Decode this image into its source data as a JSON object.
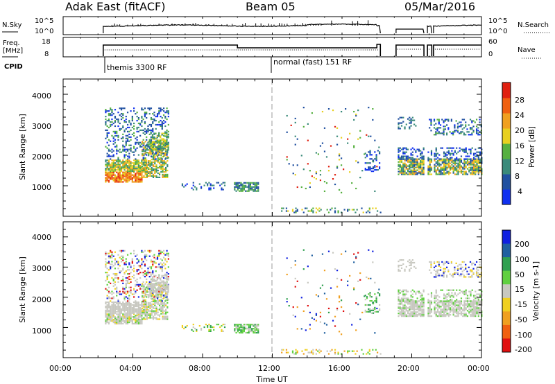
{
  "header": {
    "radar": "Adak East (fitACF)",
    "beam": "Beam 05",
    "date": "05/Mar/2016"
  },
  "status_panels": {
    "nsky_label": "N.Sky",
    "nsearch_label": "N.Search",
    "nsky_ticks": [
      "10^5",
      "10^0"
    ],
    "nsearch_ticks": [
      "10^5",
      "10^0"
    ],
    "freq_label_line1": "Freq.",
    "freq_label_line2": "[MHz]",
    "freq_ticks": [
      "18",
      "8"
    ],
    "nave_label": "Nave",
    "nave_ticks": [
      "60",
      "0"
    ],
    "cpid_label": "CPID",
    "cpid_segments": [
      {
        "start_hour": 2.3,
        "label": "themis 3300 RF"
      },
      {
        "start_hour": 12.0,
        "label": "normal (fast) 151 RF"
      }
    ],
    "data_gaps_hours": [
      [
        0,
        2.3
      ],
      [
        18.2,
        19.1
      ],
      [
        20.7,
        20.9
      ],
      [
        21.15,
        21.25
      ]
    ]
  },
  "chart_data": [
    {
      "type": "heatmap",
      "name": "power",
      "ylabel": "Slant Range [km]",
      "xlim_hours": [
        0,
        24
      ],
      "ylim_km": [
        0,
        4500
      ],
      "yticks": [
        "1000",
        "2000",
        "3000",
        "4000"
      ],
      "colorbar_label": "Power [dB]",
      "colorbar_ticks": [
        "4",
        "8",
        "12",
        "16",
        "20",
        "24",
        "28"
      ],
      "colorbar_range": [
        0,
        32
      ],
      "colors": [
        "#1030f0",
        "#2050a0",
        "#3a8a7a",
        "#56b040",
        "#e8d020",
        "#f0a020",
        "#f06010",
        "#e02010"
      ]
    },
    {
      "type": "heatmap",
      "name": "velocity",
      "ylabel": "Slant Range [km]",
      "xlabel": "Time UT",
      "xlim_hours": [
        0,
        24
      ],
      "ylim_km": [
        0,
        4500
      ],
      "yticks": [
        "1000",
        "2000",
        "3000",
        "4000"
      ],
      "xticks": [
        "00:00",
        "04:00",
        "08:00",
        "12:00",
        "16:00",
        "20:00",
        "00:00"
      ],
      "colorbar_label": "Velocity [m s-1]",
      "colorbar_ticks": [
        "200",
        "100",
        "50",
        "15",
        "-15",
        "-50",
        "-100",
        "-200"
      ],
      "colors": [
        "#1020e0",
        "#2060a0",
        "#30a050",
        "#60d040",
        "#c8c8c0",
        "#f0d020",
        "#f0a020",
        "#f06010",
        "#e01010"
      ]
    }
  ]
}
